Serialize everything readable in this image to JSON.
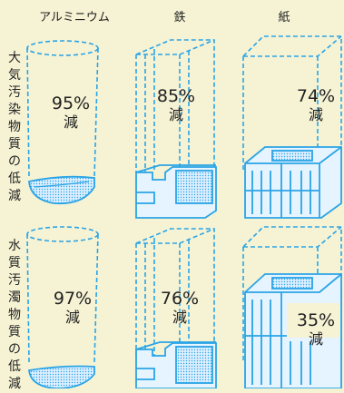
{
  "columns": [
    "アルミニウム",
    "鉄",
    "紙"
  ],
  "rows": [
    {
      "label": "大気汚染物質の低減",
      "values": [
        {
          "percent": "95%",
          "unit": "減",
          "reduction": 95
        },
        {
          "percent": "85%",
          "unit": "減",
          "reduction": 85
        },
        {
          "percent": "74%",
          "unit": "減",
          "reduction": 74
        }
      ]
    },
    {
      "label": "水質汚濁物質の低減",
      "values": [
        {
          "percent": "97%",
          "unit": "減",
          "reduction": 97
        },
        {
          "percent": "76%",
          "unit": "減",
          "reduction": 76
        },
        {
          "percent": "35%",
          "unit": "減",
          "reduction": 35
        }
      ]
    }
  ],
  "colors": {
    "background": "#f6f3d4",
    "accent": "#2aa4e6",
    "text": "#222222"
  }
}
